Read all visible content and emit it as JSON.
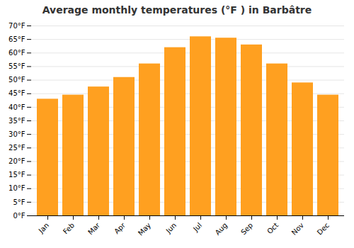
{
  "chart_data": {
    "type": "bar",
    "title": "Average monthly temperatures (°F ) in Barbâtre",
    "categories": [
      "Jan",
      "Feb",
      "Mar",
      "Apr",
      "May",
      "Jun",
      "Jul",
      "Aug",
      "Sep",
      "Oct",
      "Nov",
      "Dec"
    ],
    "values": [
      43,
      44.5,
      47.5,
      51,
      56,
      62,
      66,
      65.5,
      63,
      56,
      49,
      44.5
    ],
    "color": "#FFA020",
    "ylim": [
      0,
      70
    ],
    "yticks": [
      {
        "value": 0,
        "label": "0°F"
      },
      {
        "value": 5,
        "label": "5°F"
      },
      {
        "value": 10,
        "label": "10°F"
      },
      {
        "value": 15,
        "label": "15°F"
      },
      {
        "value": 20,
        "label": "20°F"
      },
      {
        "value": 25,
        "label": "25°F"
      },
      {
        "value": 30,
        "label": "30°F"
      },
      {
        "value": 35,
        "label": "35°F"
      },
      {
        "value": 40,
        "label": "40°F"
      },
      {
        "value": 45,
        "label": "45°F"
      },
      {
        "value": 50,
        "label": "50°F"
      },
      {
        "value": 55,
        "label": "55°F"
      },
      {
        "value": 60,
        "label": "60°F"
      },
      {
        "value": 65,
        "label": "65°F"
      },
      {
        "value": 70,
        "label": "70°F"
      }
    ],
    "grid": true
  }
}
